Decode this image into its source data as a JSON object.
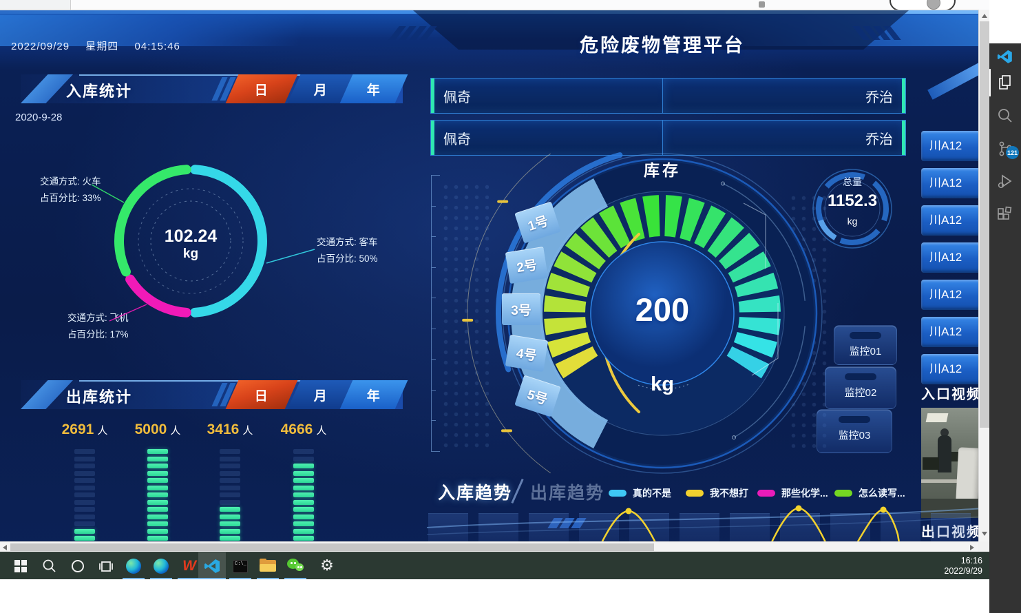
{
  "header": {
    "date": "2022/09/29",
    "weekday": "星期四",
    "time": "04:15:46",
    "title": "危险废物管理平台"
  },
  "inbound": {
    "title": "入库统计",
    "tabs": [
      "日",
      "月",
      "年"
    ],
    "active_tab_index": 0,
    "date": "2020-9-28",
    "center": {
      "value": "102.24",
      "unit": "kg"
    },
    "slices": [
      {
        "name": "火车",
        "line1": "交通方式: 火车",
        "line2": "占百分比: 33%",
        "percent": 33,
        "color": "#35e96a"
      },
      {
        "name": "客车",
        "line1": "交通方式: 客车",
        "line2": "占百分比: 50%",
        "percent": 50,
        "color": "#35d8e8"
      },
      {
        "name": "飞机",
        "line1": "交通方式: 飞机",
        "line2": "占百分比: 17%",
        "percent": 17,
        "color": "#f01ab8"
      }
    ]
  },
  "outbound": {
    "title": "出库统计",
    "tabs": [
      "日",
      "月",
      "年"
    ],
    "active_tab_index": 0,
    "values": [
      {
        "num": "2691",
        "unit": "人"
      },
      {
        "num": "5000",
        "unit": "人"
      },
      {
        "num": "3416",
        "unit": "人"
      },
      {
        "num": "4666",
        "unit": "人"
      }
    ],
    "bar_segments_total": 13,
    "bar_segments_filled": [
      2,
      13,
      5,
      11
    ]
  },
  "consign_boxes": [
    {
      "text": "佩奇",
      "align": "left"
    },
    {
      "text": "乔治",
      "align": "right"
    },
    {
      "text": "佩奇",
      "align": "left"
    },
    {
      "text": "乔治",
      "align": "right"
    }
  ],
  "inventory": {
    "title": "库存",
    "value": "200",
    "unit": "kg",
    "zones": [
      "1号",
      "2号",
      "3号",
      "4号",
      "5号"
    ],
    "total": {
      "label": "总量",
      "value": "1152.3",
      "unit": "kg"
    }
  },
  "monitors": [
    "监控01",
    "监控02",
    "监控03"
  ],
  "plates": [
    "川A12",
    "川A12",
    "川A12",
    "川A12",
    "川A12",
    "川A12",
    "川A12"
  ],
  "videos": {
    "entry_label": "入口视频",
    "exit_label": "出口视频"
  },
  "trend": {
    "tabs": [
      {
        "label": "入库趋势",
        "active": true
      },
      {
        "label": "出库趋势",
        "active": false
      }
    ],
    "legend": [
      {
        "label": "真的不是",
        "color": "#3fc8f4"
      },
      {
        "label": "我不想打",
        "color": "#f2d12e"
      },
      {
        "label": "那些化学...",
        "color": "#ea1cb9"
      },
      {
        "label": "怎么读写...",
        "color": "#74d722"
      }
    ]
  },
  "taskbar": {
    "time": "16:16",
    "date": "2022/9/29",
    "icons": [
      "start",
      "search",
      "cortana",
      "task-view",
      "edge",
      "edge",
      "wps-office",
      "vs-code",
      "terminal",
      "file-explorer",
      "wechat",
      "settings"
    ]
  },
  "vscode_rail": {
    "icons": [
      "vscode-logo",
      "explorer",
      "search",
      "source-control",
      "run-debug",
      "extensions"
    ],
    "source_control_badge": "121"
  },
  "chart_data": [
    {
      "type": "pie",
      "title": "入库统计 (日)",
      "center_label": "102.24 kg",
      "slices": [
        {
          "label": "火车",
          "value": 33
        },
        {
          "label": "客车",
          "value": 50
        },
        {
          "label": "飞机",
          "value": 17
        }
      ],
      "unit": "%",
      "colors": [
        "#35e96a",
        "#35d8e8",
        "#f01ab8"
      ],
      "legend_position": "callouts"
    },
    {
      "type": "bar",
      "title": "出库统计 (日)",
      "categories": [
        "",
        "",
        "",
        ""
      ],
      "values": [
        2691,
        5000,
        3416,
        4666
      ],
      "unit": "人",
      "ylim": [
        0,
        5000
      ],
      "grid": false
    },
    {
      "type": "gauge",
      "title": "库存",
      "value": 200,
      "unit": "kg",
      "zones": [
        "1号",
        "2号",
        "3号",
        "4号",
        "5号"
      ],
      "total_label": "总量",
      "total_value": 1152.3,
      "total_unit": "kg"
    },
    {
      "type": "line",
      "title": "入库趋势",
      "series": [
        {
          "name": "真的不是"
        },
        {
          "name": "我不想打"
        },
        {
          "name": "那些化学..."
        },
        {
          "name": "怎么读写..."
        }
      ]
    }
  ]
}
